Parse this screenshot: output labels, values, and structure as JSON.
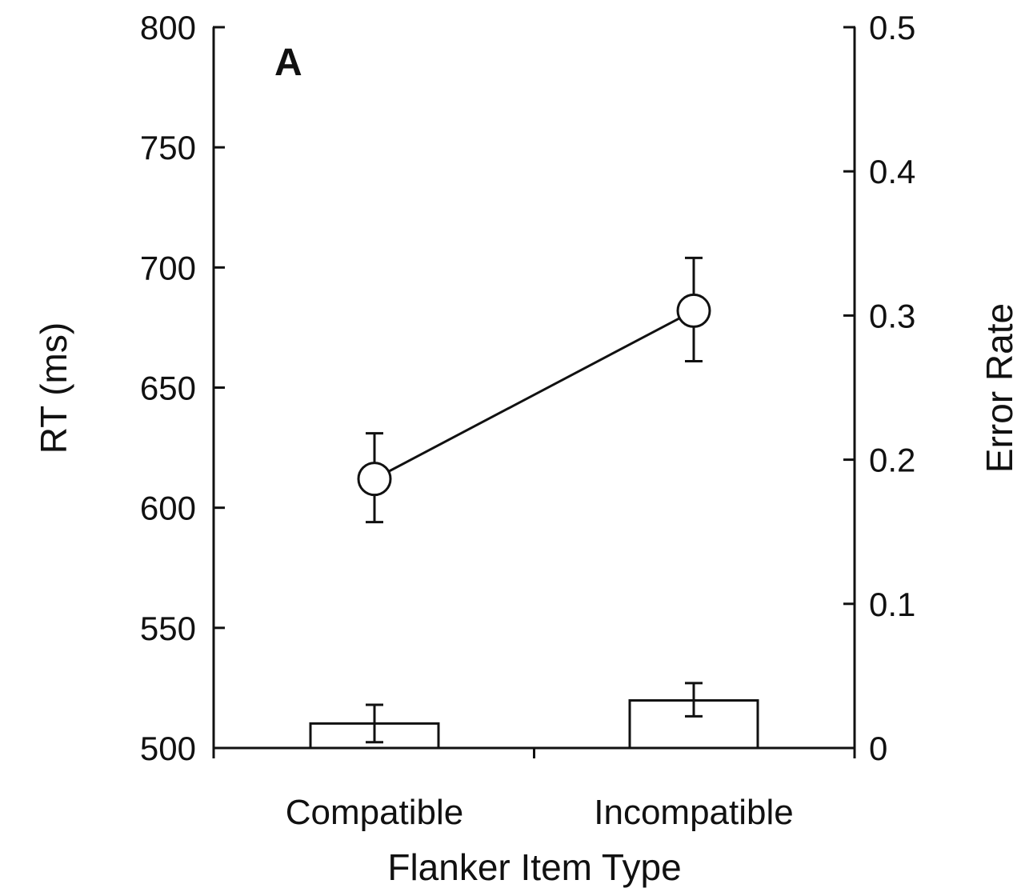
{
  "chart_data": {
    "type": "line",
    "panel_label": "A",
    "xlabel": "Flanker Item Type",
    "ylabel_left": "RT (ms)",
    "ylabel_right": "Error Rate",
    "categories": [
      "Compatible",
      "Incompatible"
    ],
    "ylim_left": [
      500,
      800
    ],
    "yticks_left": [
      "500",
      "550",
      "600",
      "650",
      "700",
      "750",
      "800"
    ],
    "ylim_right": [
      0,
      0.5
    ],
    "yticks_right": [
      "0",
      "0.1",
      "0.2",
      "0.3",
      "0.4",
      "0.5"
    ],
    "series": [
      {
        "axis": "left",
        "type": "line",
        "values": [
          612,
          682
        ],
        "err_low": [
          594,
          661
        ],
        "err_high": [
          631,
          704
        ]
      },
      {
        "axis": "right",
        "type": "bar",
        "values": [
          0.017,
          0.033
        ],
        "err_low": [
          0.004,
          0.022
        ],
        "err_high": [
          0.03,
          0.045
        ]
      }
    ]
  }
}
